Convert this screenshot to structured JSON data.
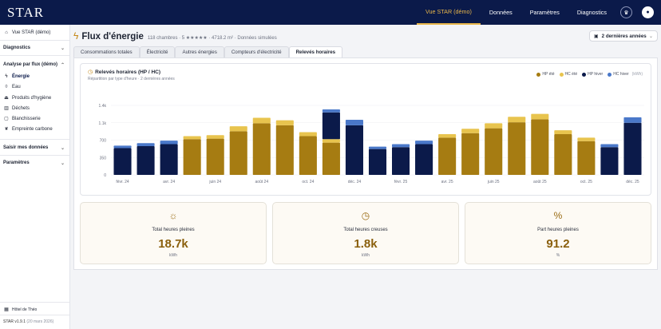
{
  "app": {
    "logo": "STAR"
  },
  "nav": {
    "items": [
      "Vue STAR (démo)",
      "Données",
      "Paramètres",
      "Diagnostics"
    ]
  },
  "sidebar": {
    "top_item": "Vue STAR (démo)",
    "diagnostics": "Diagnostics",
    "analyse": "Analyse par flux (démo)",
    "flux": [
      "Énergie",
      "Eau",
      "Produits d'hygiène",
      "Déchets",
      "Blanchisserie",
      "Empreinte carbone"
    ],
    "saisir": "Saisir mes données",
    "parametres": "Paramètres",
    "hotel": "Hôtel de Théo",
    "version": "STAR v1.9.1",
    "version_date": "(20 mars 2026)"
  },
  "page": {
    "title": "Flux d'énergie",
    "subtitle": "118 chambres · 5 ★★★★★ · 4718.2 m² · Données simulées",
    "period": "2 dernières années"
  },
  "tabs": [
    "Consommations totales",
    "Électricité",
    "Autres énergies",
    "Compteurs d'électricité",
    "Relevés horaires"
  ],
  "chart_card": {
    "title": "Relevés horaires (HP / HC)",
    "subtitle": "Répartition par type d'heure · 2 dernières années",
    "unit": "(kWh)"
  },
  "colors": {
    "hp_ete": "#a67c12",
    "hc_ete": "#e8c44e",
    "hp_hiver": "#0b1a4a",
    "hc_hiver": "#4a78c9",
    "accent": "#e8b64a"
  },
  "chart_data": {
    "type": "bar",
    "stacked": true,
    "categories": [
      "févr. 24",
      "mars 24",
      "avr. 24",
      "mai 24",
      "juin 24",
      "juil. 24",
      "août 24",
      "sept. 24",
      "oct. 24",
      "nov. 24",
      "déc. 24",
      "janv. 25",
      "févr. 25",
      "mars 25",
      "avr. 25",
      "mai 25",
      "juin 25",
      "juil. 25",
      "août 25",
      "sept. 25",
      "oct. 25",
      "nov. 25",
      "déc. 25"
    ],
    "x_tick_labels": [
      "févr. 24",
      "avr. 24",
      "juin 24",
      "août 24",
      "oct. 24",
      "déc. 24",
      "févr. 25",
      "avr. 25",
      "juin 25",
      "août 25",
      "oct. 25",
      "déc. 25"
    ],
    "y_ticks": [
      "0",
      "350",
      "700",
      "1.1k",
      "1.4k"
    ],
    "ylim": [
      0,
      1400
    ],
    "series": [
      {
        "name": "HP été",
        "color": "#a67c12",
        "values": [
          0,
          0,
          0,
          720,
          730,
          880,
          1040,
          1000,
          780,
          650,
          0,
          0,
          0,
          0,
          750,
          840,
          940,
          1060,
          1120,
          820,
          680,
          0,
          0
        ]
      },
      {
        "name": "HC été",
        "color": "#e8c44e",
        "values": [
          0,
          0,
          0,
          60,
          70,
          100,
          110,
          100,
          80,
          70,
          0,
          0,
          0,
          0,
          70,
          90,
          100,
          110,
          110,
          80,
          70,
          0,
          0
        ]
      },
      {
        "name": "HP hiver",
        "color": "#0b1a4a",
        "values": [
          540,
          580,
          620,
          0,
          0,
          0,
          0,
          0,
          0,
          540,
          1000,
          520,
          560,
          620,
          0,
          0,
          0,
          0,
          0,
          0,
          0,
          560,
          1050
        ]
      },
      {
        "name": "HC hiver",
        "color": "#4a78c9",
        "values": [
          50,
          60,
          70,
          0,
          0,
          0,
          0,
          0,
          0,
          60,
          110,
          50,
          60,
          70,
          0,
          0,
          0,
          0,
          0,
          0,
          0,
          60,
          110
        ]
      }
    ],
    "legend_position": "top-right",
    "grid": true
  },
  "kpis": [
    {
      "icon": "☼",
      "label": "Total heures pleines",
      "value": "18.7k",
      "unit": "kWh"
    },
    {
      "icon": "◷",
      "label": "Total heures creuses",
      "value": "1.8k",
      "unit": "kWh"
    },
    {
      "icon": "%",
      "label": "Part heures pleines",
      "value": "91.2",
      "unit": "%"
    }
  ]
}
